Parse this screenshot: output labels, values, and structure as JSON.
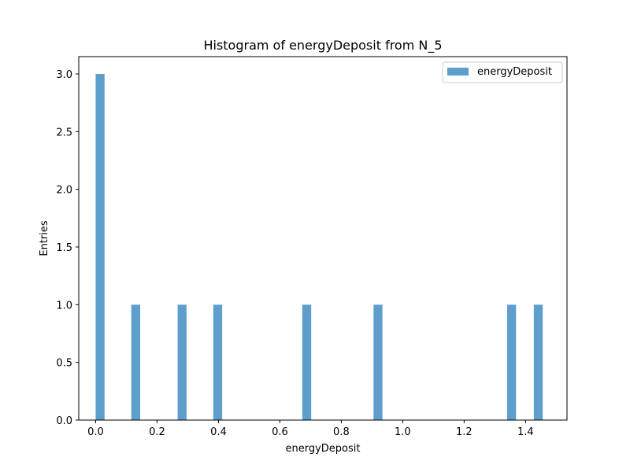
{
  "chart_data": {
    "type": "bar",
    "title": "Histogram of energyDeposit from N_5",
    "xlabel": "energyDeposit",
    "ylabel": "Entries",
    "xlim": [
      -0.055,
      1.535
    ],
    "ylim": [
      0,
      3.15
    ],
    "xticks": [
      "0.0",
      "0.2",
      "0.4",
      "0.6",
      "0.8",
      "1.0",
      "1.2",
      "1.4"
    ],
    "yticks": [
      "0.0",
      "0.5",
      "1.0",
      "1.5",
      "2.0",
      "2.5",
      "3.0"
    ],
    "bin_width": 0.029,
    "bins": [
      {
        "x0": 0.0,
        "count": 3
      },
      {
        "x0": 0.116,
        "count": 1
      },
      {
        "x0": 0.267,
        "count": 1
      },
      {
        "x0": 0.383,
        "count": 1
      },
      {
        "x0": 0.673,
        "count": 1
      },
      {
        "x0": 0.905,
        "count": 1
      },
      {
        "x0": 1.34,
        "count": 1
      },
      {
        "x0": 1.427,
        "count": 1
      }
    ],
    "series": [
      {
        "name": "energyDeposit",
        "color": "#5d9ecd"
      }
    ],
    "legend_position": "top-right",
    "grid": false
  }
}
